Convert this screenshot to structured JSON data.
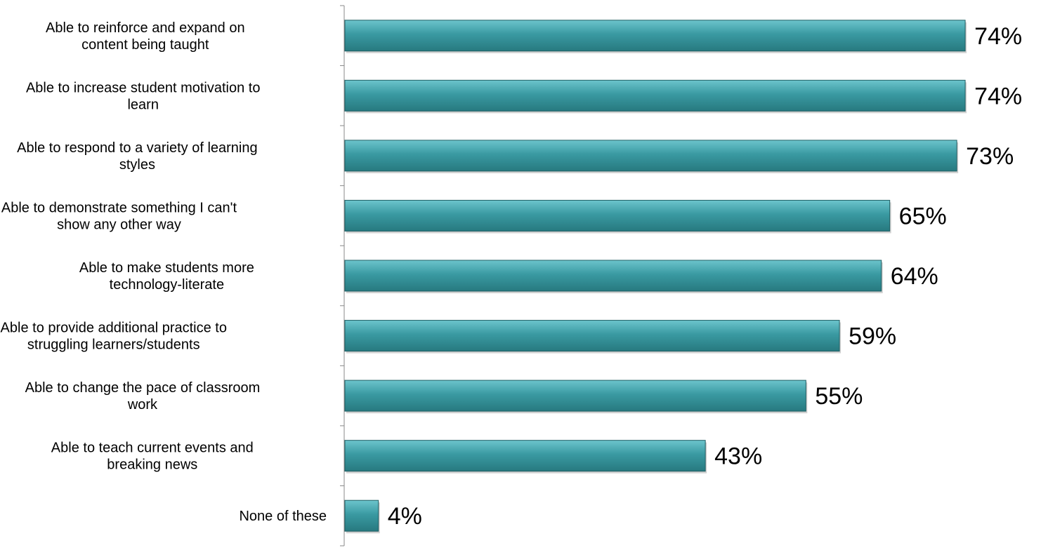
{
  "chart_data": {
    "type": "bar",
    "orientation": "horizontal",
    "categories": [
      [
        "Able to reinforce and expand on",
        "content being taught"
      ],
      [
        "Able to increase student motivation to",
        "learn"
      ],
      [
        "Able to respond to a variety of learning",
        "styles"
      ],
      [
        "Able to demonstrate something I can't",
        "show any other way"
      ],
      [
        "Able to make students more",
        "technology-literate"
      ],
      [
        "Able to provide additional practice to",
        "struggling learners/students"
      ],
      [
        "Able to change the pace of classroom",
        "work"
      ],
      [
        "Able to teach current events and",
        "breaking news"
      ],
      [
        "None of these"
      ]
    ],
    "values": [
      74,
      74,
      73,
      65,
      64,
      59,
      55,
      43,
      4
    ],
    "value_labels": [
      "74%",
      "74%",
      "73%",
      "65%",
      "64%",
      "59%",
      "55%",
      "43%",
      "4%"
    ],
    "title": "",
    "xlabel": "",
    "ylabel": "",
    "xlim": [
      0,
      75
    ],
    "grid": false,
    "legend": "none",
    "colors": {
      "bar_top": "#6cc4cc",
      "bar_mid": "#3a9aa2",
      "bar_bottom": "#27797f",
      "bar_edge": "#1f5f64",
      "axis": "#888888"
    }
  }
}
